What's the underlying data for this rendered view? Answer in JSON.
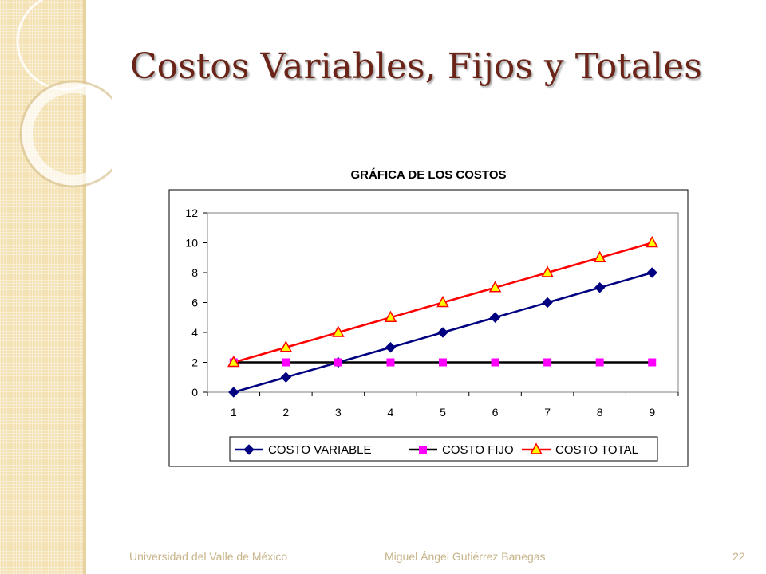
{
  "slide": {
    "title": "Costos Variables, Fijos y Totales",
    "footer_left": "Universidad del Valle de México",
    "footer_center": "Miguel Ángel Gutiérrez Banegas",
    "page_number": "22"
  },
  "chart_data": {
    "type": "line",
    "title": "GRÁFICA DE LOS COSTOS",
    "x": [
      1,
      2,
      3,
      4,
      5,
      6,
      7,
      8,
      9
    ],
    "ylim": [
      0,
      12
    ],
    "yticks": [
      0,
      2,
      4,
      6,
      8,
      10,
      12
    ],
    "grid": false,
    "legend_position": "bottom",
    "series": [
      {
        "name": "COSTO VARIABLE",
        "values": [
          0,
          1,
          2,
          3,
          4,
          5,
          6,
          7,
          8
        ],
        "line_color": "#000080",
        "marker": "diamond",
        "marker_color": "#000080"
      },
      {
        "name": "COSTO FIJO",
        "values": [
          2,
          2,
          2,
          2,
          2,
          2,
          2,
          2,
          2
        ],
        "line_color": "#000000",
        "marker": "square",
        "marker_color": "#ff00ff"
      },
      {
        "name": "COSTO TOTAL",
        "values": [
          2,
          3,
          4,
          5,
          6,
          7,
          8,
          9,
          10
        ],
        "line_color": "#ff0000",
        "marker": "triangle",
        "marker_color": "#ffff00"
      }
    ]
  }
}
